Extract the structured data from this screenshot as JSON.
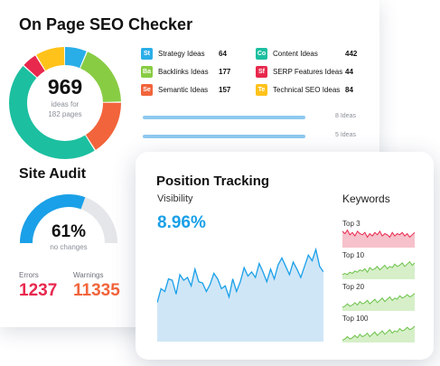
{
  "seo": {
    "title": "On Page SEO Checker",
    "total": "969",
    "total_sub_line1": "ideas for",
    "total_sub_line2": "182 pages",
    "segments": [
      {
        "name": "Strategy",
        "value": 64,
        "color": "#2aaee8"
      },
      {
        "name": "Backlinks",
        "value": 177,
        "color": "#88cc44"
      },
      {
        "name": "Semantic",
        "value": 157,
        "color": "#f2643b"
      },
      {
        "name": "Content",
        "value": 442,
        "color": "#1cbfa0"
      },
      {
        "name": "SERP Features",
        "value": 44,
        "color": "#e8284d"
      },
      {
        "name": "Technical SEO",
        "value": 84,
        "color": "#ffc21a"
      }
    ],
    "ideas": [
      {
        "badge": "St",
        "label": "Strategy Ideas",
        "count": "64",
        "color": "#2aaee8"
      },
      {
        "badge": "Co",
        "label": "Content Ideas",
        "count": "442",
        "color": "#1cbfa0"
      },
      {
        "badge": "Ba",
        "label": "Backlinks Ideas",
        "count": "177",
        "color": "#88cc44"
      },
      {
        "badge": "Sf",
        "label": "SERP Features Ideas",
        "count": "44",
        "color": "#e8284d"
      },
      {
        "badge": "Se",
        "label": "Semantic Ideas",
        "count": "157",
        "color": "#f2643b"
      },
      {
        "badge": "Te",
        "label": "Technical SEO Ideas",
        "count": "84",
        "color": "#ffc21a"
      }
    ],
    "bars": [
      {
        "label": "8 Ideas",
        "fraction": 1.0
      },
      {
        "label": "5 Ideas",
        "fraction": 1.0
      }
    ]
  },
  "audit": {
    "title": "Site Audit",
    "percent": "61%",
    "percent_value": 61,
    "sub": "no changes",
    "errors_label": "Errors",
    "errors_value": "1237",
    "warnings_label": "Warnings",
    "warnings_value": "11335",
    "colors": {
      "arc": "#1aa0e8",
      "track": "#e4e6ea",
      "errors": "#e8284d",
      "warnings": "#f2643b"
    }
  },
  "position": {
    "title": "Position Tracking",
    "visibility_label": "Visibility",
    "visibility_value": "8.96%",
    "visibility_series": [
      28,
      38,
      36,
      45,
      44,
      34,
      48,
      44,
      46,
      40,
      52,
      43,
      42,
      36,
      41,
      49,
      45,
      38,
      40,
      32,
      45,
      36,
      43,
      53,
      47,
      50,
      46,
      56,
      50,
      43,
      52,
      45,
      55,
      60,
      54,
      48,
      57,
      52,
      46,
      54,
      62,
      58,
      66,
      54,
      50
    ],
    "keywords_title": "Keywords",
    "keywords": [
      {
        "label": "Top 3",
        "color": "#e8284d",
        "fill": "#f6c1cb",
        "series": [
          14,
          12,
          15,
          11,
          13,
          10,
          14,
          12,
          11,
          13,
          9,
          12,
          10,
          13,
          11,
          14,
          10,
          12,
          11,
          9,
          13,
          10,
          12,
          11,
          13,
          10,
          12,
          9,
          11,
          13
        ]
      },
      {
        "label": "Top 10",
        "color": "#6cc24a",
        "fill": "#d6efc8",
        "series": [
          4,
          5,
          4,
          6,
          5,
          7,
          6,
          8,
          7,
          9,
          6,
          10,
          8,
          9,
          11,
          8,
          10,
          12,
          9,
          11,
          10,
          13,
          11,
          12,
          14,
          11,
          13,
          15,
          12,
          14
        ]
      },
      {
        "label": "Top 20",
        "color": "#6cc24a",
        "fill": "#d6efc8",
        "series": [
          3,
          4,
          6,
          4,
          5,
          7,
          5,
          8,
          6,
          7,
          9,
          6,
          8,
          10,
          7,
          9,
          11,
          8,
          10,
          12,
          9,
          11,
          10,
          13,
          11,
          12,
          14,
          12,
          13,
          15
        ]
      },
      {
        "label": "Top 100",
        "color": "#6cc24a",
        "fill": "#d6efc8",
        "series": [
          2,
          3,
          5,
          3,
          4,
          6,
          4,
          7,
          5,
          6,
          8,
          5,
          7,
          9,
          6,
          8,
          10,
          7,
          9,
          11,
          8,
          10,
          9,
          12,
          10,
          11,
          13,
          11,
          12,
          14
        ]
      }
    ]
  }
}
